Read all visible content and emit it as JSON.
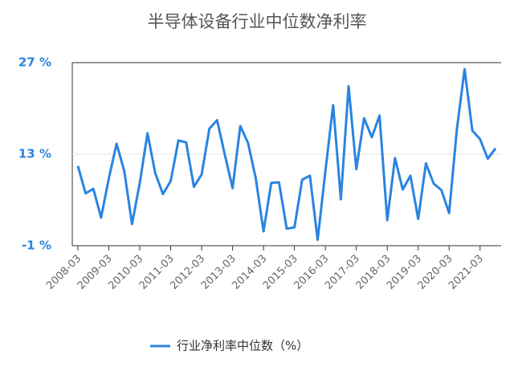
{
  "chart_data": {
    "type": "line",
    "title": "半导体设备行业中位数净利率",
    "categories": [
      "2008-03",
      null,
      null,
      null,
      "2009-03",
      null,
      null,
      null,
      "2010-03",
      null,
      null,
      null,
      "2011-03",
      null,
      null,
      null,
      "2012-03",
      null,
      null,
      null,
      "2013-03",
      null,
      null,
      null,
      "2014-03",
      null,
      null,
      null,
      "2015-03",
      null,
      null,
      null,
      "2016-03",
      null,
      null,
      null,
      "2017-03",
      null,
      null,
      null,
      "2018-03",
      null,
      null,
      null,
      "2019-03",
      null,
      null,
      null,
      "2020-03",
      null,
      null,
      null,
      "2021-03",
      null,
      null
    ],
    "series": [
      {
        "name": "行业净利率中位数（%）",
        "color": "#2a84e0",
        "values": [
          11.2,
          7.0,
          7.7,
          3.3,
          9.3,
          14.6,
          10.4,
          2.3,
          8.6,
          16.2,
          10.1,
          6.9,
          8.9,
          15.1,
          14.8,
          8.0,
          9.9,
          16.9,
          18.2,
          12.9,
          7.8,
          17.3,
          14.7,
          9.3,
          1.2,
          8.6,
          8.7,
          1.6,
          1.8,
          9.1,
          9.7,
          -0.1,
          10.4,
          20.5,
          6.1,
          23.4,
          10.7,
          18.5,
          15.6,
          18.9,
          2.9,
          12.4,
          7.6,
          9.7,
          3.1,
          11.6,
          8.5,
          7.5,
          4.0,
          16.8,
          26.0,
          16.6,
          15.3,
          12.3,
          13.9
        ]
      }
    ],
    "ylim": [
      -1,
      27
    ],
    "yticks": [
      {
        "value": -1,
        "label": "-1 %"
      },
      {
        "value": 13,
        "label": "13 %"
      },
      {
        "value": 27,
        "label": "27 %"
      }
    ],
    "grid": true
  }
}
